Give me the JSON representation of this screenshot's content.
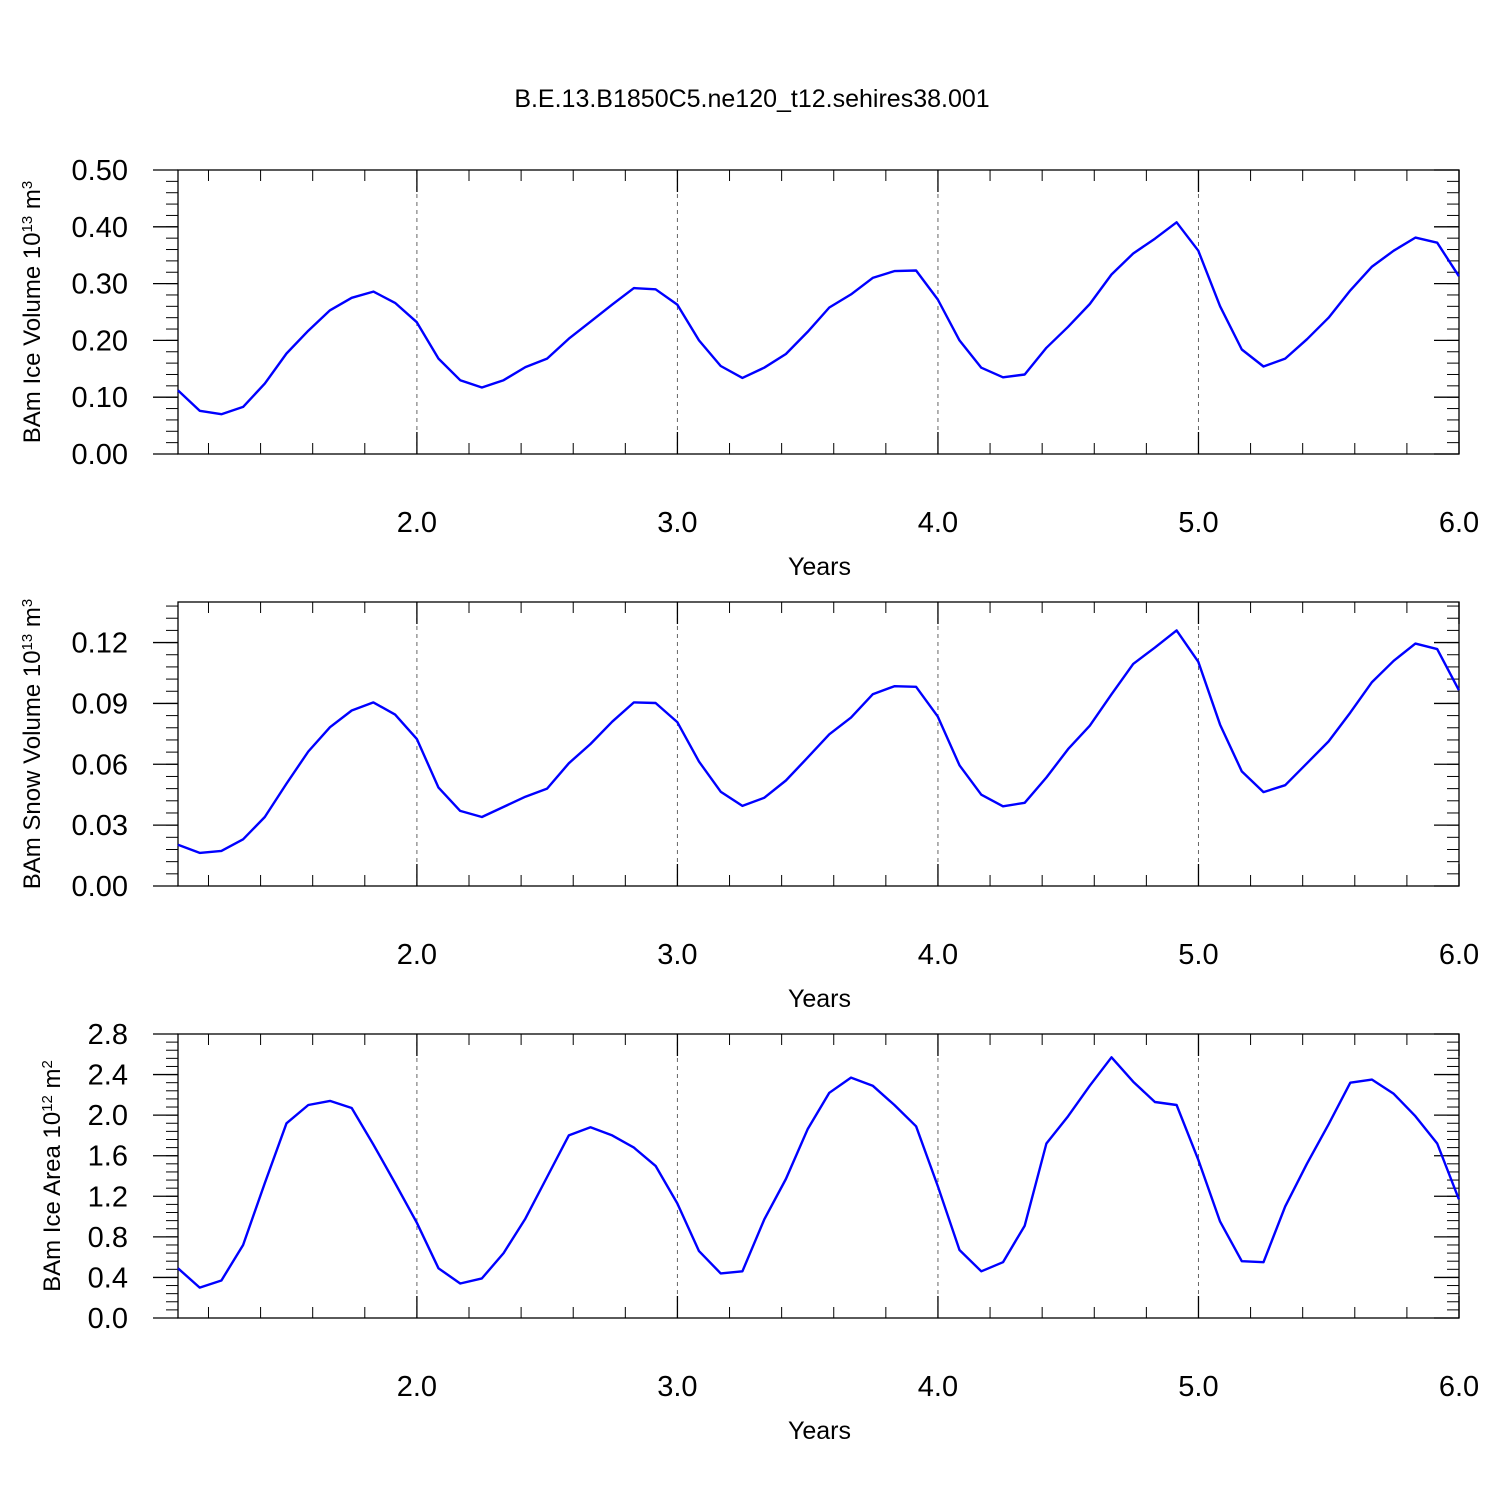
{
  "figure": {
    "title": "B.E.13.B1850C5.ne120_t12.sehires38.001"
  },
  "chart_data": [
    {
      "type": "line",
      "xlabel": "Years",
      "ylabel": {
        "text": "BAm Ice Volume 10",
        "sup1": "13",
        "mid": " m",
        "sup2": "3"
      },
      "xlim": [
        1.083,
        6.0
      ],
      "ylim": [
        0,
        0.5
      ],
      "xticks": [
        2.0,
        3.0,
        4.0,
        5.0,
        6.0
      ],
      "xtick_labels": [
        "2.0",
        "3.0",
        "4.0",
        "5.0",
        "6.0"
      ],
      "yticks": [
        0,
        0.1,
        0.2,
        0.3,
        0.4,
        0.5
      ],
      "ytick_labels": [
        "0.00",
        "0.10",
        "0.20",
        "0.30",
        "0.40",
        "0.50"
      ],
      "vertical_reference_lines": [
        2.0,
        3.0,
        4.0,
        5.0
      ],
      "series": [
        {
          "color": "#0000ff",
          "x0": 1.083,
          "dx": 0.08333,
          "values": [
            0.112,
            0.076,
            0.07,
            0.083,
            0.124,
            0.177,
            0.217,
            0.253,
            0.275,
            0.286,
            0.266,
            0.232,
            0.168,
            0.13,
            0.117,
            0.13,
            0.153,
            0.168,
            0.203,
            0.233,
            0.263,
            0.292,
            0.29,
            0.263,
            0.2,
            0.155,
            0.134,
            0.152,
            0.176,
            0.215,
            0.258,
            0.281,
            0.31,
            0.322,
            0.323,
            0.272,
            0.2,
            0.152,
            0.135,
            0.14,
            0.187,
            0.224,
            0.264,
            0.316,
            0.353,
            0.379,
            0.408,
            0.358,
            0.26,
            0.184,
            0.154,
            0.168,
            0.202,
            0.24,
            0.288,
            0.33,
            0.358,
            0.381,
            0.372,
            0.313
          ]
        }
      ]
    },
    {
      "type": "line",
      "xlabel": "Years",
      "ylabel": {
        "text": "BAm Snow Volume 10",
        "sup1": "13",
        "mid": " m",
        "sup2": "3"
      },
      "xlim": [
        1.083,
        6.0
      ],
      "ylim": [
        0,
        0.14
      ],
      "xticks": [
        2.0,
        3.0,
        4.0,
        5.0,
        6.0
      ],
      "xtick_labels": [
        "2.0",
        "3.0",
        "4.0",
        "5.0",
        "6.0"
      ],
      "yticks": [
        0,
        0.03,
        0.06,
        0.09,
        0.12
      ],
      "ytick_labels": [
        "0.00",
        "0.03",
        "0.06",
        "0.09",
        "0.12"
      ],
      "vertical_reference_lines": [
        2.0,
        3.0,
        4.0,
        5.0
      ],
      "series": [
        {
          "color": "#0000ff",
          "x0": 1.083,
          "dx": 0.08333,
          "values": [
            0.0203,
            0.0163,
            0.0173,
            0.023,
            0.034,
            0.0505,
            0.0663,
            0.0783,
            0.0865,
            0.0905,
            0.0845,
            0.0725,
            0.0485,
            0.037,
            0.034,
            0.039,
            0.044,
            0.048,
            0.0605,
            0.07,
            0.081,
            0.0905,
            0.0902,
            0.0808,
            0.0613,
            0.0465,
            0.0395,
            0.0435,
            0.052,
            0.0633,
            0.0748,
            0.083,
            0.0945,
            0.0985,
            0.0982,
            0.0835,
            0.0595,
            0.045,
            0.0393,
            0.041,
            0.0535,
            0.0675,
            0.079,
            0.0945,
            0.1095,
            0.1175,
            0.126,
            0.1105,
            0.0795,
            0.0565,
            0.0463,
            0.0497,
            0.0605,
            0.0713,
            0.0855,
            0.1005,
            0.111,
            0.1195,
            0.1168,
            0.0965
          ]
        }
      ]
    },
    {
      "type": "line",
      "xlabel": "Years",
      "ylabel": {
        "text": "BAm Ice Area 10",
        "sup1": "12",
        "mid": " m",
        "sup2": "2"
      },
      "xlim": [
        1.083,
        6.0
      ],
      "ylim": [
        0,
        2.8
      ],
      "xticks": [
        2.0,
        3.0,
        4.0,
        5.0,
        6.0
      ],
      "xtick_labels": [
        "2.0",
        "3.0",
        "4.0",
        "5.0",
        "6.0"
      ],
      "yticks": [
        0,
        0.4,
        0.8,
        1.2,
        1.6,
        2.0,
        2.4,
        2.8
      ],
      "ytick_labels": [
        "0.0",
        "0.4",
        "0.8",
        "1.2",
        "1.6",
        "2.0",
        "2.4",
        "2.8"
      ],
      "vertical_reference_lines": [
        2.0,
        3.0,
        4.0,
        5.0
      ],
      "series": [
        {
          "color": "#0000ff",
          "x0": 1.083,
          "dx": 0.08333,
          "values": [
            0.49,
            0.3,
            0.37,
            0.72,
            1.33,
            1.92,
            2.1,
            2.14,
            2.07,
            1.71,
            1.33,
            0.94,
            0.49,
            0.34,
            0.39,
            0.64,
            0.98,
            1.39,
            1.8,
            1.88,
            1.8,
            1.68,
            1.5,
            1.13,
            0.66,
            0.44,
            0.46,
            0.97,
            1.37,
            1.86,
            2.22,
            2.37,
            2.29,
            2.1,
            1.89,
            1.3,
            0.67,
            0.46,
            0.55,
            0.91,
            1.72,
            1.99,
            2.29,
            2.57,
            2.33,
            2.13,
            2.1,
            1.56,
            0.95,
            0.56,
            0.55,
            1.1,
            1.52,
            1.91,
            2.32,
            2.35,
            2.21,
            1.99,
            1.72,
            1.17
          ]
        }
      ]
    }
  ]
}
